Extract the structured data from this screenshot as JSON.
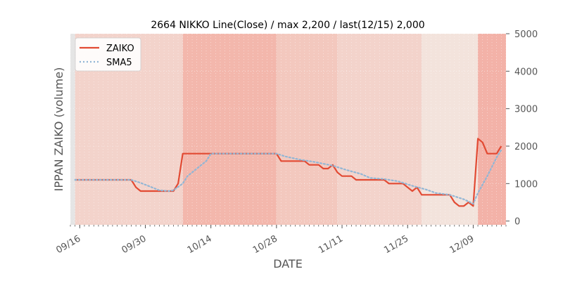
{
  "chart_data": {
    "type": "line",
    "title": "2664 NIKKO Line(Close) / max 2,200 / last(12/15) 2,000",
    "xlabel": "DATE",
    "ylabel": "IPPAN ZAIKO (volume)",
    "y_axis_side": "right",
    "ylim": [
      -100,
      5000
    ],
    "xlim": [
      "2019-09-14",
      "2019-12-16"
    ],
    "yticks": [
      0,
      1000,
      2000,
      3000,
      4000,
      5000
    ],
    "xticks": [
      {
        "date": "2019-09-16",
        "label": "09/16"
      },
      {
        "date": "2019-09-30",
        "label": "09/30"
      },
      {
        "date": "2019-10-14",
        "label": "10/14"
      },
      {
        "date": "2019-10-28",
        "label": "10/28"
      },
      {
        "date": "2019-11-11",
        "label": "11/11"
      },
      {
        "date": "2019-11-25",
        "label": "11/25"
      },
      {
        "date": "2019-12-09",
        "label": "12/09"
      }
    ],
    "legend": {
      "position": "top-left"
    },
    "colors": {
      "zaiko": "#e24a33",
      "sma": "#92b6d5",
      "plot_bg": "#e5e5e5",
      "grid_dot": "#ffffff"
    },
    "bands": [
      {
        "from": "2019-09-15",
        "to": "2019-10-08",
        "color": "#f3d3cb"
      },
      {
        "from": "2019-10-08",
        "to": "2019-10-28",
        "color": "#f3b7ac"
      },
      {
        "from": "2019-10-28",
        "to": "2019-11-10",
        "color": "#f3c8be"
      },
      {
        "from": "2019-11-10",
        "to": "2019-11-28",
        "color": "#f3d3cb"
      },
      {
        "from": "2019-11-28",
        "to": "2019-12-10",
        "color": "#f3e3dc"
      },
      {
        "from": "2019-12-10",
        "to": "2019-12-16",
        "color": "#f3b2a8"
      }
    ],
    "series": [
      {
        "name": "ZAIKO",
        "style": "solid",
        "points": [
          [
            "2019-09-15",
            1100
          ],
          [
            "2019-09-20",
            1100
          ],
          [
            "2019-09-27",
            1100
          ],
          [
            "2019-09-28",
            900
          ],
          [
            "2019-09-29",
            800
          ],
          [
            "2019-10-06",
            800
          ],
          [
            "2019-10-07",
            1000
          ],
          [
            "2019-10-08",
            1800
          ],
          [
            "2019-10-15",
            1800
          ],
          [
            "2019-10-22",
            1800
          ],
          [
            "2019-10-28",
            1800
          ],
          [
            "2019-10-29",
            1600
          ],
          [
            "2019-11-01",
            1600
          ],
          [
            "2019-11-03",
            1600
          ],
          [
            "2019-11-04",
            1500
          ],
          [
            "2019-11-06",
            1500
          ],
          [
            "2019-11-07",
            1400
          ],
          [
            "2019-11-08",
            1400
          ],
          [
            "2019-11-09",
            1500
          ],
          [
            "2019-11-10",
            1300
          ],
          [
            "2019-11-11",
            1200
          ],
          [
            "2019-11-13",
            1200
          ],
          [
            "2019-11-14",
            1100
          ],
          [
            "2019-11-20",
            1100
          ],
          [
            "2019-11-21",
            1000
          ],
          [
            "2019-11-24",
            1000
          ],
          [
            "2019-11-25",
            900
          ],
          [
            "2019-11-26",
            800
          ],
          [
            "2019-11-27",
            900
          ],
          [
            "2019-11-28",
            700
          ],
          [
            "2019-12-01",
            700
          ],
          [
            "2019-12-04",
            700
          ],
          [
            "2019-12-05",
            500
          ],
          [
            "2019-12-06",
            400
          ],
          [
            "2019-12-07",
            400
          ],
          [
            "2019-12-08",
            500
          ],
          [
            "2019-12-09",
            400
          ],
          [
            "2019-12-10",
            2200
          ],
          [
            "2019-12-11",
            2100
          ],
          [
            "2019-12-12",
            1800
          ],
          [
            "2019-12-14",
            1800
          ],
          [
            "2019-12-15",
            2000
          ]
        ]
      },
      {
        "name": "SMA5",
        "style": "dotted",
        "points": [
          [
            "2019-09-15",
            1100
          ],
          [
            "2019-09-20",
            1100
          ],
          [
            "2019-09-27",
            1100
          ],
          [
            "2019-09-29",
            1020
          ],
          [
            "2019-10-01",
            920
          ],
          [
            "2019-10-03",
            820
          ],
          [
            "2019-10-05",
            800
          ],
          [
            "2019-10-06",
            820
          ],
          [
            "2019-10-08",
            1000
          ],
          [
            "2019-10-09",
            1200
          ],
          [
            "2019-10-11",
            1400
          ],
          [
            "2019-10-13",
            1600
          ],
          [
            "2019-10-14",
            1800
          ],
          [
            "2019-10-28",
            1800
          ],
          [
            "2019-10-30",
            1720
          ],
          [
            "2019-11-02",
            1640
          ],
          [
            "2019-11-05",
            1580
          ],
          [
            "2019-11-09",
            1480
          ],
          [
            "2019-11-12",
            1360
          ],
          [
            "2019-11-15",
            1260
          ],
          [
            "2019-11-17",
            1150
          ],
          [
            "2019-11-20",
            1120
          ],
          [
            "2019-11-23",
            1060
          ],
          [
            "2019-11-26",
            940
          ],
          [
            "2019-11-29",
            840
          ],
          [
            "2019-12-01",
            750
          ],
          [
            "2019-12-04",
            700
          ],
          [
            "2019-12-07",
            580
          ],
          [
            "2019-12-09",
            460
          ],
          [
            "2019-12-10",
            750
          ],
          [
            "2019-12-12",
            1200
          ],
          [
            "2019-12-14",
            1700
          ],
          [
            "2019-12-15",
            1900
          ]
        ]
      }
    ]
  }
}
